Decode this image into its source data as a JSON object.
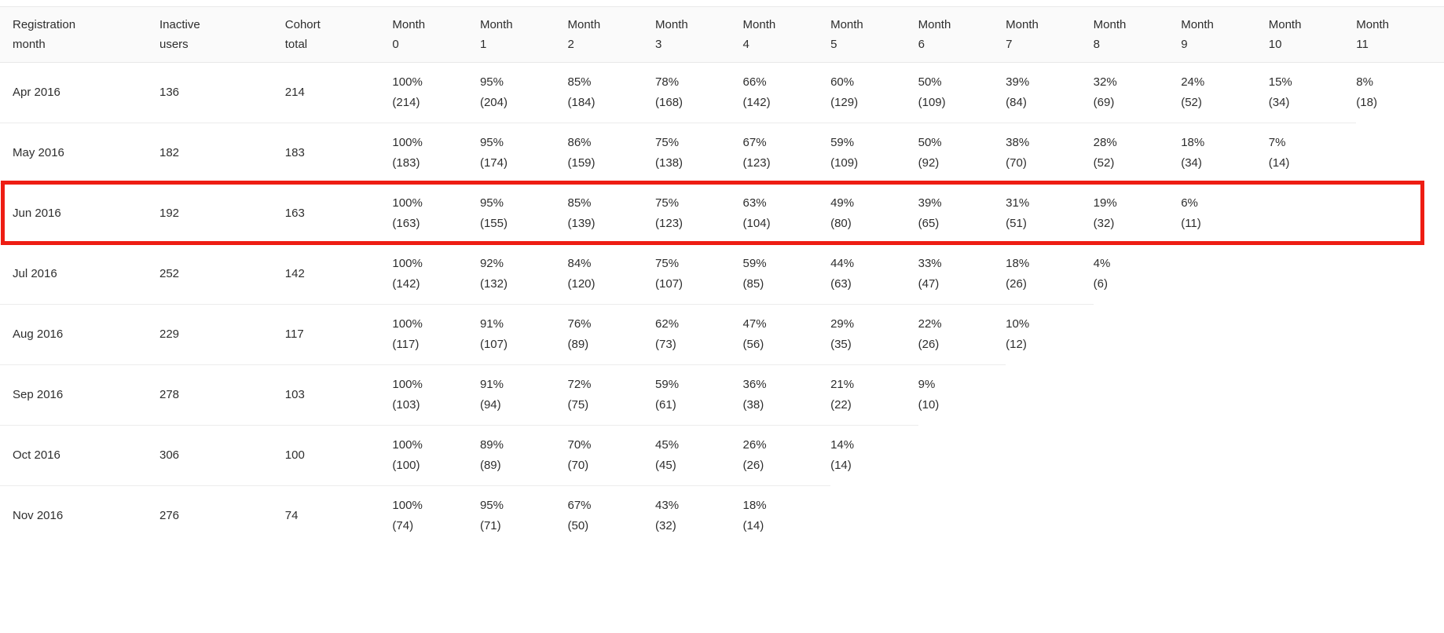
{
  "table": {
    "columns": [
      "Registration month",
      "Inactive users",
      "Cohort total",
      "Month 0",
      "Month 1",
      "Month 2",
      "Month 3",
      "Month 4",
      "Month 5",
      "Month 6",
      "Month 7",
      "Month 8",
      "Month 9",
      "Month 10",
      "Month 11"
    ],
    "highlight_color": "#ee1d13",
    "highlighted_row": "Jun 2016",
    "rows": [
      {
        "registration_month": "Apr 2016",
        "inactive_users": "136",
        "cohort_total": "214",
        "highlighted": false,
        "months": [
          {
            "percent": "100%",
            "count": "(214)"
          },
          {
            "percent": "95%",
            "count": "(204)"
          },
          {
            "percent": "85%",
            "count": "(184)"
          },
          {
            "percent": "78%",
            "count": "(168)"
          },
          {
            "percent": "66%",
            "count": "(142)"
          },
          {
            "percent": "60%",
            "count": "(129)"
          },
          {
            "percent": "50%",
            "count": "(109)"
          },
          {
            "percent": "39%",
            "count": "(84)"
          },
          {
            "percent": "32%",
            "count": "(69)"
          },
          {
            "percent": "24%",
            "count": "(52)"
          },
          {
            "percent": "15%",
            "count": "(34)"
          },
          {
            "percent": "8%",
            "count": "(18)"
          }
        ]
      },
      {
        "registration_month": "May 2016",
        "inactive_users": "182",
        "cohort_total": "183",
        "highlighted": false,
        "months": [
          {
            "percent": "100%",
            "count": "(183)"
          },
          {
            "percent": "95%",
            "count": "(174)"
          },
          {
            "percent": "86%",
            "count": "(159)"
          },
          {
            "percent": "75%",
            "count": "(138)"
          },
          {
            "percent": "67%",
            "count": "(123)"
          },
          {
            "percent": "59%",
            "count": "(109)"
          },
          {
            "percent": "50%",
            "count": "(92)"
          },
          {
            "percent": "38%",
            "count": "(70)"
          },
          {
            "percent": "28%",
            "count": "(52)"
          },
          {
            "percent": "18%",
            "count": "(34)"
          },
          {
            "percent": "7%",
            "count": "(14)"
          }
        ]
      },
      {
        "registration_month": "Jun 2016",
        "inactive_users": "192",
        "cohort_total": "163",
        "highlighted": true,
        "months": [
          {
            "percent": "100%",
            "count": "(163)"
          },
          {
            "percent": "95%",
            "count": "(155)"
          },
          {
            "percent": "85%",
            "count": "(139)"
          },
          {
            "percent": "75%",
            "count": "(123)"
          },
          {
            "percent": "63%",
            "count": "(104)"
          },
          {
            "percent": "49%",
            "count": "(80)"
          },
          {
            "percent": "39%",
            "count": "(65)"
          },
          {
            "percent": "31%",
            "count": "(51)"
          },
          {
            "percent": "19%",
            "count": "(32)"
          },
          {
            "percent": "6%",
            "count": "(11)"
          }
        ]
      },
      {
        "registration_month": "Jul 2016",
        "inactive_users": "252",
        "cohort_total": "142",
        "highlighted": false,
        "months": [
          {
            "percent": "100%",
            "count": "(142)"
          },
          {
            "percent": "92%",
            "count": "(132)"
          },
          {
            "percent": "84%",
            "count": "(120)"
          },
          {
            "percent": "75%",
            "count": "(107)"
          },
          {
            "percent": "59%",
            "count": "(85)"
          },
          {
            "percent": "44%",
            "count": "(63)"
          },
          {
            "percent": "33%",
            "count": "(47)"
          },
          {
            "percent": "18%",
            "count": "(26)"
          },
          {
            "percent": "4%",
            "count": "(6)"
          }
        ]
      },
      {
        "registration_month": "Aug 2016",
        "inactive_users": "229",
        "cohort_total": "117",
        "highlighted": false,
        "months": [
          {
            "percent": "100%",
            "count": "(117)"
          },
          {
            "percent": "91%",
            "count": "(107)"
          },
          {
            "percent": "76%",
            "count": "(89)"
          },
          {
            "percent": "62%",
            "count": "(73)"
          },
          {
            "percent": "47%",
            "count": "(56)"
          },
          {
            "percent": "29%",
            "count": "(35)"
          },
          {
            "percent": "22%",
            "count": "(26)"
          },
          {
            "percent": "10%",
            "count": "(12)"
          }
        ]
      },
      {
        "registration_month": "Sep 2016",
        "inactive_users": "278",
        "cohort_total": "103",
        "highlighted": false,
        "months": [
          {
            "percent": "100%",
            "count": "(103)"
          },
          {
            "percent": "91%",
            "count": "(94)"
          },
          {
            "percent": "72%",
            "count": "(75)"
          },
          {
            "percent": "59%",
            "count": "(61)"
          },
          {
            "percent": "36%",
            "count": "(38)"
          },
          {
            "percent": "21%",
            "count": "(22)"
          },
          {
            "percent": "9%",
            "count": "(10)"
          }
        ]
      },
      {
        "registration_month": "Oct 2016",
        "inactive_users": "306",
        "cohort_total": "100",
        "highlighted": false,
        "months": [
          {
            "percent": "100%",
            "count": "(100)"
          },
          {
            "percent": "89%",
            "count": "(89)"
          },
          {
            "percent": "70%",
            "count": "(70)"
          },
          {
            "percent": "45%",
            "count": "(45)"
          },
          {
            "percent": "26%",
            "count": "(26)"
          },
          {
            "percent": "14%",
            "count": "(14)"
          }
        ]
      },
      {
        "registration_month": "Nov 2016",
        "inactive_users": "276",
        "cohort_total": "74",
        "highlighted": false,
        "months": [
          {
            "percent": "100%",
            "count": "(74)"
          },
          {
            "percent": "95%",
            "count": "(71)"
          },
          {
            "percent": "67%",
            "count": "(50)"
          },
          {
            "percent": "43%",
            "count": "(32)"
          },
          {
            "percent": "18%",
            "count": "(14)"
          }
        ]
      }
    ]
  }
}
